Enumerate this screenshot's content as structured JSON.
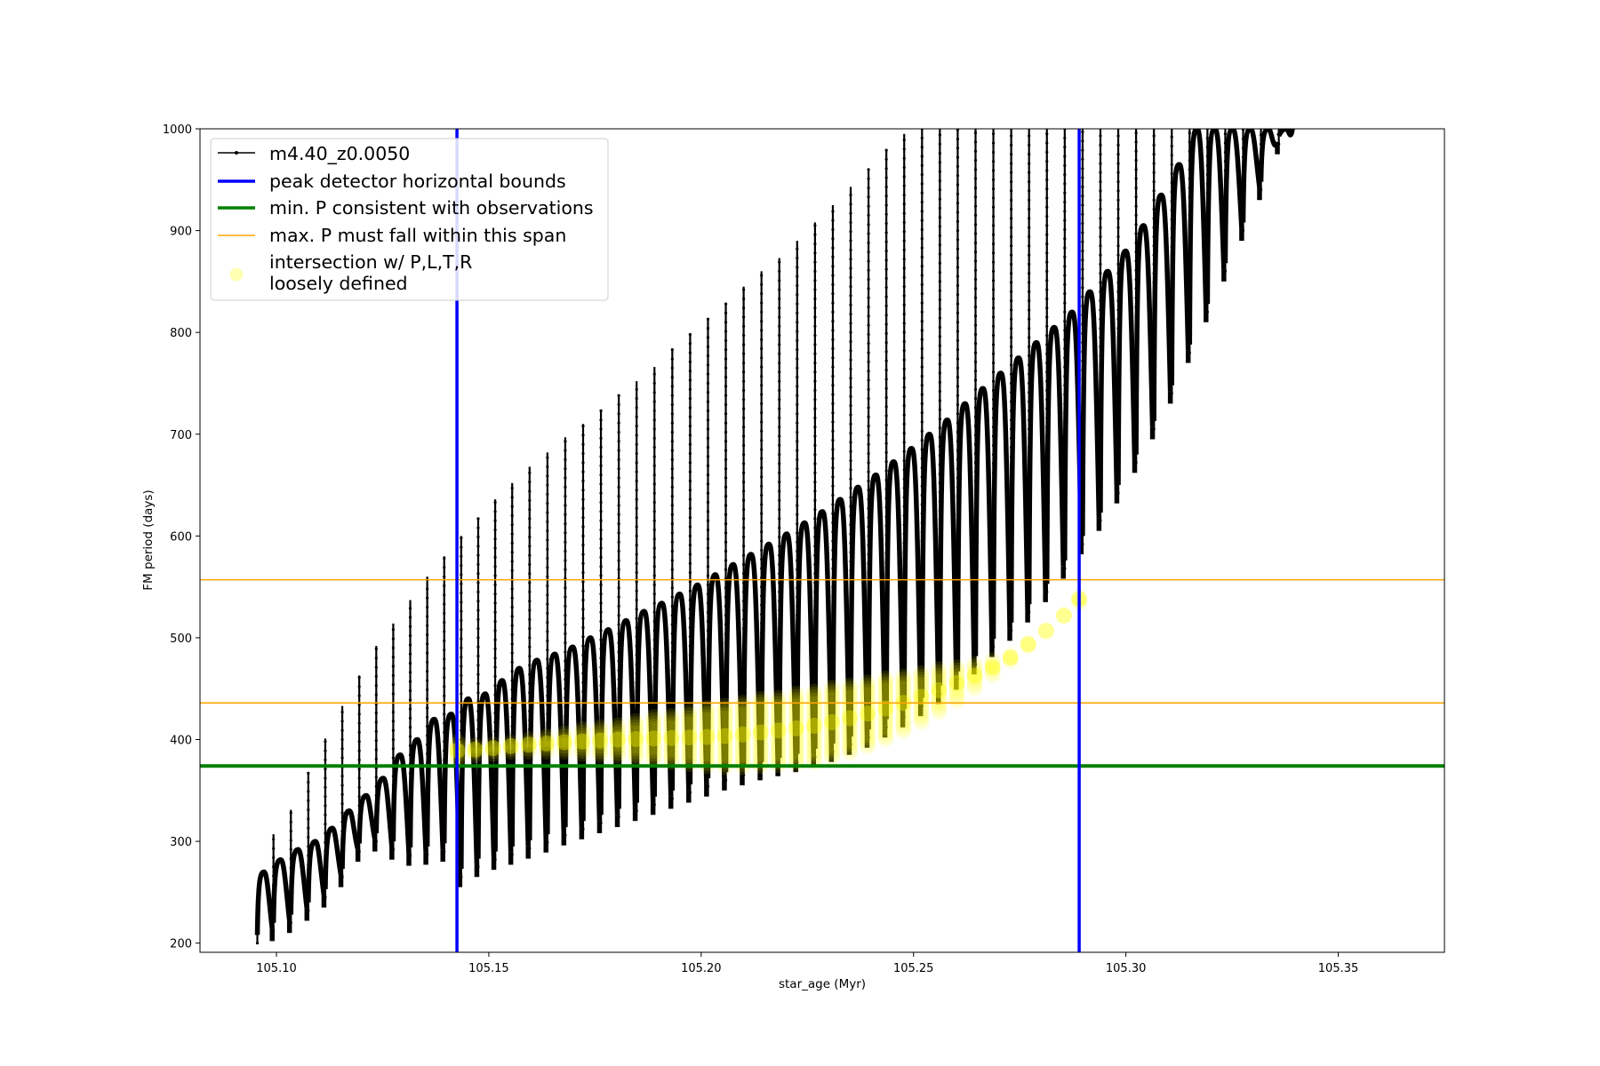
{
  "chart_data": {
    "type": "scatter",
    "xlabel": "star_age (Myr)",
    "ylabel": "FM period (days)",
    "xlim": [
      105.082,
      105.375
    ],
    "ylim": [
      191,
      1000
    ],
    "xticks": [
      105.1,
      105.15,
      105.2,
      105.25,
      105.3,
      105.35
    ],
    "xtick_labels": [
      "105.10",
      "105.15",
      "105.20",
      "105.25",
      "105.30",
      "105.35"
    ],
    "yticks": [
      200,
      300,
      400,
      500,
      600,
      700,
      800,
      900,
      1000
    ],
    "ytick_labels": [
      "200",
      "300",
      "400",
      "500",
      "600",
      "700",
      "800",
      "900",
      "1000"
    ],
    "grid": false,
    "legend_position": "upper-left",
    "series": [
      {
        "name": "m4.40_z0.0050",
        "kind": "line-with-points",
        "color": "#000000",
        "pulse_ages": [
          105.0955,
          105.0993,
          105.1034,
          105.1075,
          105.1115,
          105.1155,
          105.1195,
          105.1235,
          105.1275,
          105.1315,
          105.1355,
          105.1395,
          105.1435,
          105.1475,
          105.1515,
          105.1555,
          105.1596,
          105.1638,
          105.168,
          105.1722,
          105.1764,
          105.1806,
          105.1848,
          105.189,
          105.1932,
          105.1974,
          105.2016,
          105.2058,
          105.21,
          105.2142,
          105.2184,
          105.2226,
          105.2268,
          105.231,
          105.2352,
          105.2394,
          105.2436,
          105.2478,
          105.252,
          105.2562,
          105.2604,
          105.2646,
          105.2688,
          105.273,
          105.2772,
          105.2814,
          105.2856,
          105.2898,
          105.294,
          105.2982,
          105.3024,
          105.3066,
          105.3108,
          105.315,
          105.3192,
          105.3234,
          105.3276,
          105.3318,
          105.336
        ],
        "pulse_min_periods": [
          200,
          212,
          220,
          232,
          245,
          265,
          290,
          300,
          292,
          286,
          287,
          290,
          265,
          275,
          282,
          287,
          293,
          299,
          306,
          312,
          318,
          324,
          330,
          336,
          342,
          348,
          354,
          360,
          365,
          370,
          374,
          378,
          383,
          388,
          395,
          402,
          412,
          422,
          433,
          445,
          459,
          474,
          491,
          507,
          525,
          545,
          568,
          592,
          615,
          642,
          672,
          705,
          740,
          780,
          820,
          860,
          900,
          940,
          985
        ],
        "pulse_peak_periods": [
          270,
          282,
          292,
          300,
          313,
          330,
          345,
          362,
          385,
          400,
          420,
          425,
          440,
          445,
          458,
          470,
          478,
          484,
          491,
          500,
          508,
          517,
          526,
          534,
          543,
          552,
          562,
          572,
          582,
          592,
          602,
          613,
          624,
          636,
          648,
          660,
          673,
          686,
          700,
          714,
          730,
          745,
          760,
          775,
          790,
          805,
          820,
          840,
          860,
          880,
          905,
          935,
          965,
          1000,
          1000,
          1000,
          1000,
          1000,
          1000
        ],
        "pulse_spike_periods": [
          243,
          307,
          331,
          367,
          401,
          433,
          463,
          492,
          514,
          537,
          560,
          580,
          600,
          618,
          636,
          652,
          668,
          682,
          697,
          710,
          724,
          739,
          752,
          766,
          783,
          798,
          813,
          828,
          845,
          860,
          873,
          890,
          908,
          925,
          943,
          960,
          980,
          995,
          1000,
          1000,
          1000,
          1000,
          1000,
          1000,
          1000,
          1000,
          1000,
          1000,
          1000,
          1000,
          1000,
          1000,
          1000,
          1000,
          1000,
          1000,
          1000,
          1000,
          1000
        ]
      },
      {
        "name": "intersection w/ P,L,T,R\nloosely defined",
        "kind": "scatter",
        "color": "#ffff00",
        "ages": [
          105.1426,
          105.1468,
          105.151,
          105.1552,
          105.1594,
          105.1636,
          105.1678,
          105.172,
          105.1762,
          105.1804,
          105.1846,
          105.1888,
          105.193,
          105.1972,
          105.2014,
          105.2056,
          105.2098,
          105.214,
          105.2182,
          105.2224,
          105.2266,
          105.2308,
          105.235,
          105.2392,
          105.2434,
          105.2476,
          105.2518,
          105.256,
          105.2602,
          105.2644,
          105.2686,
          105.2728,
          105.277,
          105.2812,
          105.2854,
          105.289
        ],
        "period_low": [
          380,
          385,
          386,
          388,
          388,
          388,
          388,
          386,
          385,
          384,
          382,
          380,
          378,
          376,
          374,
          373,
          373,
          374,
          375,
          376,
          378,
          382,
          387,
          393,
          400,
          408,
          417,
          427,
          438,
          450,
          463,
          477,
          492,
          506,
          521,
          534
        ],
        "period_high": [
          398,
          395,
          397,
          399,
          402,
          404,
          407,
          410,
          413,
          416,
          419,
          422,
          425,
          428,
          431,
          434,
          437,
          440,
          443,
          446,
          449,
          452,
          455,
          458,
          461,
          464,
          467,
          470,
          473,
          476,
          479,
          484,
          495,
          508,
          523,
          542
        ]
      }
    ],
    "vertical_lines": [
      {
        "name": "peak detector horizontal bounds",
        "color": "#0000ff",
        "x": [
          105.1425,
          105.289
        ]
      }
    ],
    "horizontal_lines": [
      {
        "name": "min. P consistent with observations",
        "color": "#008000",
        "y": [
          374
        ]
      },
      {
        "name": "max. P must fall within this span",
        "color": "#ffa500",
        "y": [
          436,
          557
        ]
      }
    ],
    "legend": [
      {
        "label": "m4.40_z0.0050",
        "marker": "black-line-point"
      },
      {
        "label": "peak detector horizontal bounds",
        "marker": "blue-line"
      },
      {
        "label": "min. P consistent with observations",
        "marker": "green-line"
      },
      {
        "label": "max. P must fall within this span",
        "marker": "orange-line"
      },
      {
        "label_line1": "intersection w/ P,L,T,R",
        "label_line2": "loosely defined",
        "marker": "yellow-dot"
      }
    ]
  }
}
